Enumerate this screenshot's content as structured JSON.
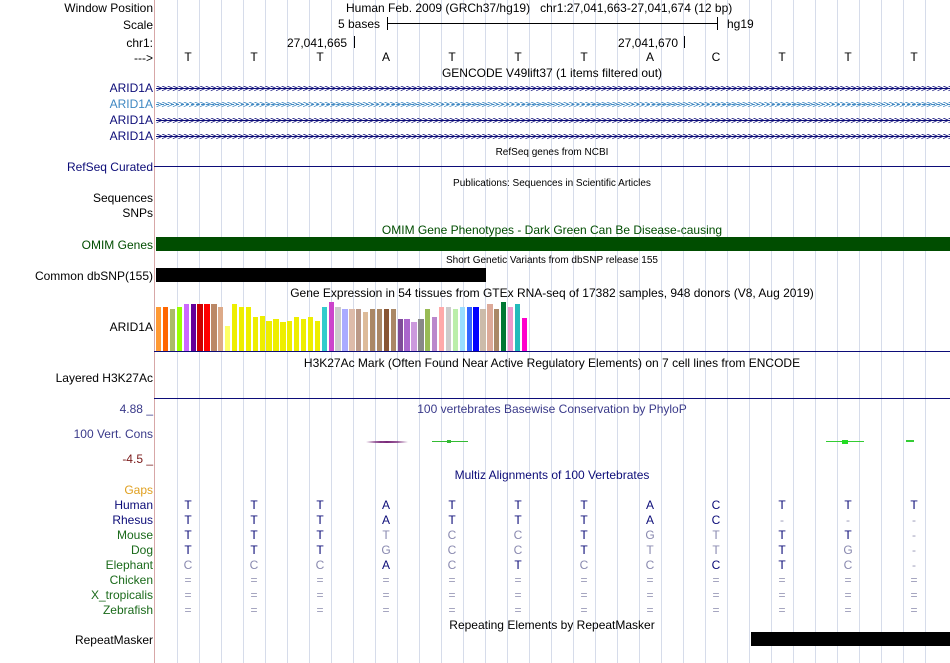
{
  "header": {
    "window_position_label": "Window Position",
    "window_position_value": "Human Feb. 2009 (GRCh37/hg19)   chr1:27,041,663-27,041,674 (12 bp)",
    "scale_label": "Scale",
    "scale_value": "5 bases",
    "assembly": "hg19",
    "chrom_label": "chr1:",
    "coord_left": "27,041,665",
    "coord_right": "27,041,670",
    "strand_label": "--->"
  },
  "reference_bases": [
    "T",
    "T",
    "T",
    "A",
    "T",
    "T",
    "T",
    "A",
    "C",
    "T",
    "T",
    "T"
  ],
  "tracks": {
    "gencode": {
      "title": "GENCODE V49lift37 (1 items filtered out)",
      "items": [
        {
          "name": "ARID1A",
          "color": "#0c0c78"
        },
        {
          "name": "ARID1A",
          "color": "#3f88c2"
        },
        {
          "name": "ARID1A",
          "color": "#0c0c78"
        },
        {
          "name": "ARID1A",
          "color": "#0c0c78"
        }
      ]
    },
    "refseq": {
      "label": "RefSeq Curated",
      "title": "RefSeq genes from NCBI",
      "color": "#0c0c78"
    },
    "publications": {
      "label1": "Sequences",
      "label2": "SNPs",
      "title": "Publications: Sequences in Scientific Articles"
    },
    "omim": {
      "label": "OMIM Genes",
      "title": "OMIM Gene Phenotypes - Dark Green Can Be Disease-causing",
      "color": "#004d00"
    },
    "dbsnp": {
      "label": "Common dbSNP(155)",
      "title": "Short Genetic Variants from dbSNP release 155"
    },
    "gtex": {
      "label": "ARID1A",
      "title": "Gene Expression in 54 tissues from GTEx RNA-seq of 17382 samples, 948 donors (V8, Aug 2019)",
      "tissue_colors": [
        "#ff9933",
        "#ff6600",
        "#aabb66",
        "#99ff00",
        "#cc66ff",
        "#660099",
        "#cc0000",
        "#ff0000",
        "#bb8866",
        "#ddaa88",
        "#ffff66",
        "#eeee00",
        "#eeee00",
        "#eeee00",
        "#eeee00",
        "#eeee00",
        "#eeee00",
        "#eeee00",
        "#eeee00",
        "#eeee00",
        "#eeee00",
        "#eeee00",
        "#eeee00",
        "#eeee00",
        "#33cccc",
        "#cc44cc",
        "#cccccc",
        "#aaaaff",
        "#ddbbaa",
        "#bb9988",
        "#ddbb99",
        "#aa8866",
        "#aa8866",
        "#885533",
        "#aa8866",
        "#7f4c99",
        "#aa66cc",
        "#cc99dd",
        "#888888",
        "#99bb55",
        "#bb88cc",
        "#ffaaaa",
        "#cccccc",
        "#bbeeaa",
        "#99ddff",
        "#3366ff",
        "#0000ff",
        "#ccbbaa",
        "#ddaa99",
        "#aa8866",
        "#007733",
        "#ee99cc",
        "#22bbbb",
        "#ff00cc"
      ],
      "tissue_values": [
        0.9,
        0.9,
        0.85,
        0.9,
        0.95,
        0.95,
        0.95,
        0.95,
        0.95,
        0.9,
        0.5,
        0.95,
        0.9,
        0.9,
        0.7,
        0.72,
        0.62,
        0.65,
        0.6,
        0.62,
        0.7,
        0.65,
        0.7,
        0.62,
        0.9,
        1.0,
        0.9,
        0.85,
        0.85,
        0.85,
        0.8,
        0.85,
        0.85,
        0.85,
        0.85,
        0.65,
        0.65,
        0.6,
        0.65,
        0.85,
        0.7,
        0.9,
        0.9,
        0.85,
        0.9,
        0.9,
        0.9,
        0.85,
        0.95,
        0.85,
        1.0,
        0.9,
        0.95,
        0.68
      ]
    },
    "h3k27ac": {
      "label": "Layered H3K27Ac",
      "title": "H3K27Ac Mark (Often Found Near Active Regulatory Elements) on 7 cell lines from ENCODE"
    },
    "phylop": {
      "label": "100 Vert. Cons",
      "max": "4.88 _",
      "min": "-4.5 _",
      "title": "100 vertebrates Basewise Conservation by PhyloP"
    },
    "multiz": {
      "title": "Multiz Alignments of 100 Vertebrates",
      "gaps_label": "Gaps",
      "species": [
        {
          "name": "Human",
          "color": "#0c0c78",
          "bases": [
            "T",
            "T",
            "T",
            "A",
            "T",
            "T",
            "T",
            "A",
            "C",
            "T",
            "T",
            "T"
          ]
        },
        {
          "name": "Rhesus",
          "color": "#0c0c78",
          "bases": [
            "T",
            "T",
            "T",
            "A",
            "T",
            "T",
            "T",
            "A",
            "C",
            "-",
            "-",
            "-"
          ]
        },
        {
          "name": "Mouse",
          "color": "#1a6a1a",
          "bases": [
            "T",
            "T",
            "T",
            "T",
            "C",
            "C",
            "T",
            "G",
            "T",
            "T",
            "T",
            "-"
          ]
        },
        {
          "name": "Dog",
          "color": "#1a6a1a",
          "bases": [
            "T",
            "T",
            "T",
            "G",
            "C",
            "C",
            "T",
            "T",
            "T",
            "T",
            "G",
            "-"
          ]
        },
        {
          "name": "Elephant",
          "color": "#1a6a1a",
          "bases": [
            "C",
            "C",
            "C",
            "A",
            "C",
            "T",
            "C",
            "C",
            "C",
            "T",
            "C",
            "-"
          ]
        },
        {
          "name": "Chicken",
          "color": "#1a6a1a",
          "bases": [
            "=",
            "=",
            "=",
            "=",
            "=",
            "=",
            "=",
            "=",
            "=",
            "=",
            "=",
            "="
          ]
        },
        {
          "name": "X_tropicalis",
          "color": "#1a6a1a",
          "bases": [
            "=",
            "=",
            "=",
            "=",
            "=",
            "=",
            "=",
            "=",
            "=",
            "=",
            "=",
            "="
          ]
        },
        {
          "name": "Zebrafish",
          "color": "#1a6a1a",
          "bases": [
            "=",
            "=",
            "=",
            "=",
            "=",
            "=",
            "=",
            "=",
            "=",
            "=",
            "=",
            "="
          ]
        }
      ]
    },
    "repeatmasker": {
      "label": "RepeatMasker",
      "title": "Repeating Elements by RepeatMasker"
    }
  }
}
